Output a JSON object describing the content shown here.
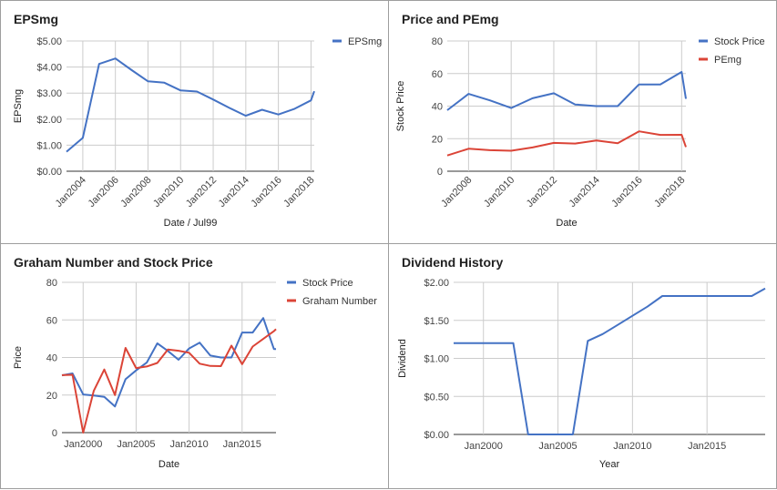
{
  "chart_data": [
    {
      "type": "line",
      "title": "EPSmg",
      "xlabel": "Date / Jul99",
      "ylabel": "EPSmg",
      "x_ticks": [
        "Jan2004",
        "Jan2006",
        "Jan2008",
        "Jan2010",
        "Jan2012",
        "Jan2014",
        "Jan2016",
        "Jan2018"
      ],
      "y_ticks": [
        "$0.00",
        "$1.00",
        "$2.00",
        "$3.00",
        "$4.00",
        "$5.00"
      ],
      "xlim": [
        2003.0,
        2018.2
      ],
      "ylim": [
        0,
        5
      ],
      "legend_position": "right",
      "grid": true,
      "series": [
        {
          "name": "EPSmg",
          "color": "#4472c4",
          "x": [
            2003.0,
            2004.0,
            2005.0,
            2006.0,
            2007.0,
            2008.0,
            2009.0,
            2010.0,
            2011.0,
            2012.0,
            2013.0,
            2014.0,
            2015.0,
            2016.0,
            2017.0,
            2018.0,
            2018.2
          ],
          "values": [
            0.75,
            1.28,
            4.12,
            4.33,
            3.88,
            3.45,
            3.4,
            3.1,
            3.06,
            2.75,
            2.43,
            2.13,
            2.36,
            2.18,
            2.4,
            2.72,
            3.07
          ]
        }
      ]
    },
    {
      "type": "line",
      "title": "Price and PEmg",
      "xlabel": "Date",
      "ylabel": "Stock Price",
      "x_ticks": [
        "Jan2008",
        "Jan2010",
        "Jan2012",
        "Jan2014",
        "Jan2016",
        "Jan2018"
      ],
      "y_ticks": [
        "0",
        "20",
        "40",
        "60",
        "80"
      ],
      "xlim": [
        2007.0,
        2018.2
      ],
      "ylim": [
        0,
        80
      ],
      "legend_position": "right",
      "grid": true,
      "series": [
        {
          "name": "Stock Price",
          "color": "#4472c4",
          "x": [
            2007.0,
            2008.0,
            2009.0,
            2010.0,
            2011.0,
            2012.0,
            2013.0,
            2014.0,
            2015.0,
            2016.0,
            2017.0,
            2018.0,
            2018.2
          ],
          "values": [
            37.5,
            47.5,
            43.5,
            38.8,
            44.8,
            47.9,
            41.0,
            40.0,
            40.0,
            53.3,
            53.3,
            61.0,
            44.5
          ]
        },
        {
          "name": "PEmg",
          "color": "#db4437",
          "x": [
            2007.0,
            2008.0,
            2009.0,
            2010.0,
            2011.0,
            2012.0,
            2013.0,
            2014.0,
            2015.0,
            2016.0,
            2017.0,
            2018.0,
            2018.2
          ],
          "values": [
            9.7,
            13.8,
            12.9,
            12.6,
            14.6,
            17.4,
            17.0,
            18.9,
            17.2,
            24.5,
            22.3,
            22.4,
            14.9
          ]
        }
      ]
    },
    {
      "type": "line",
      "title": "Graham Number and Stock Price",
      "xlabel": "Date",
      "ylabel": "Price",
      "x_ticks": [
        "Jan2000",
        "Jan2005",
        "Jan2010",
        "Jan2015"
      ],
      "y_ticks": [
        "0",
        "20",
        "40",
        "60",
        "80"
      ],
      "xlim": [
        1998.0,
        2018.2
      ],
      "ylim": [
        0,
        80
      ],
      "legend_position": "right",
      "grid": true,
      "series": [
        {
          "name": "Stock Price",
          "color": "#4472c4",
          "x": [
            1998.0,
            1999.0,
            2000.0,
            2001.0,
            2002.0,
            2003.0,
            2004.0,
            2005.0,
            2006.0,
            2007.0,
            2008.0,
            2009.0,
            2010.0,
            2011.0,
            2012.0,
            2013.0,
            2014.0,
            2015.0,
            2016.0,
            2017.0,
            2018.0,
            2018.2
          ],
          "values": [
            30.5,
            31.5,
            20.3,
            19.8,
            19.0,
            13.9,
            28.4,
            33.1,
            37.3,
            47.5,
            43.5,
            38.8,
            44.8,
            47.9,
            41.0,
            40.0,
            40.0,
            53.3,
            53.3,
            61.0,
            44.5,
            44.5
          ]
        },
        {
          "name": "Graham Number",
          "color": "#db4437",
          "x": [
            1998.0,
            1999.0,
            2000.0,
            2001.0,
            2002.0,
            2003.0,
            2004.0,
            2005.0,
            2006.0,
            2007.0,
            2008.0,
            2009.0,
            2010.0,
            2011.0,
            2012.0,
            2013.0,
            2014.0,
            2015.0,
            2016.0,
            2017.0,
            2018.0,
            2018.2
          ],
          "values": [
            30.6,
            30.8,
            0.0,
            22.2,
            33.6,
            20.0,
            45.1,
            34.4,
            35.2,
            37.1,
            44.2,
            43.6,
            42.5,
            36.7,
            35.5,
            35.4,
            46.3,
            36.4,
            45.8,
            49.9,
            54.0,
            55.1
          ]
        }
      ]
    },
    {
      "type": "line",
      "title": "Dividend History",
      "xlabel": "Year",
      "ylabel": "Dividend",
      "x_ticks": [
        "Jan2000",
        "Jan2005",
        "Jan2010",
        "Jan2015"
      ],
      "y_ticks": [
        "$0.00",
        "$0.50",
        "$1.00",
        "$1.50",
        "$2.00"
      ],
      "xlim": [
        1998.0,
        2018.9
      ],
      "ylim": [
        0,
        2
      ],
      "legend_position": "none",
      "grid": true,
      "series": [
        {
          "name": "",
          "color": "#4472c4",
          "x": [
            1998.0,
            1999.0,
            2000.0,
            2001.0,
            2002.0,
            2003.0,
            2004.0,
            2005.0,
            2006.0,
            2007.0,
            2008.0,
            2009.0,
            2010.0,
            2011.0,
            2012.0,
            2013.0,
            2014.0,
            2015.0,
            2016.0,
            2017.0,
            2018.0,
            2018.9
          ],
          "values": [
            1.2,
            1.2,
            1.2,
            1.2,
            1.2,
            0.0,
            0.0,
            0.0,
            0.0,
            1.23,
            1.32,
            1.44,
            1.56,
            1.68,
            1.82,
            1.82,
            1.82,
            1.82,
            1.82,
            1.82,
            1.82,
            1.92
          ]
        }
      ]
    }
  ]
}
